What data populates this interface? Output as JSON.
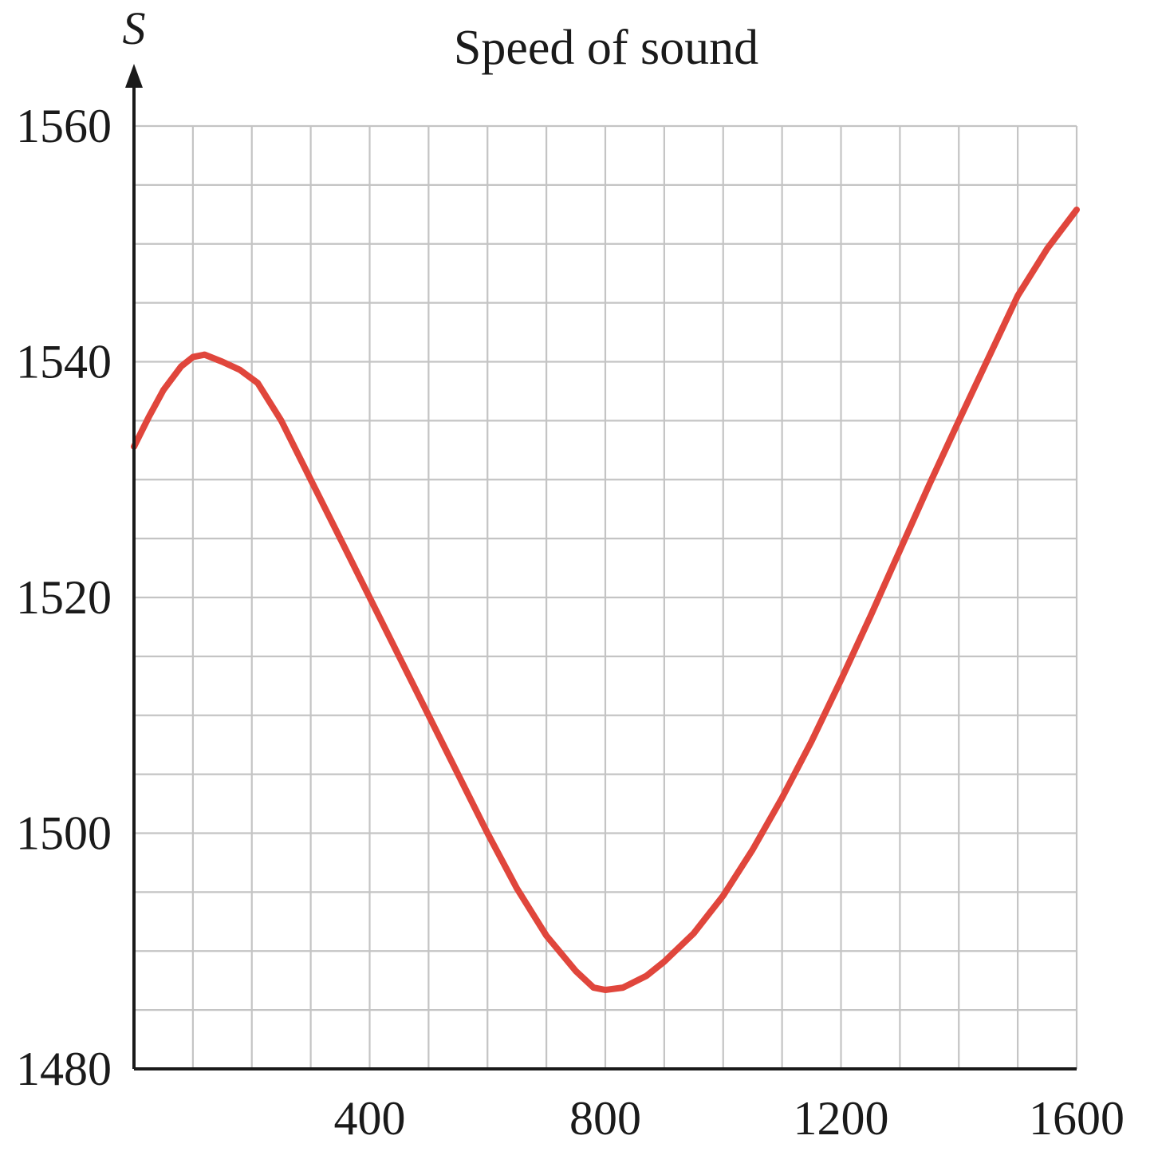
{
  "chart_data": {
    "type": "line",
    "title": "Speed of sound",
    "xlabel": "",
    "ylabel": "S",
    "xlim": [
      0,
      1600
    ],
    "ylim": [
      1480,
      1560
    ],
    "x_ticks": [
      400,
      800,
      1200,
      1600
    ],
    "y_ticks": [
      1480,
      1500,
      1520,
      1540,
      1560
    ],
    "x_grid_step": 100,
    "y_grid_step": 5,
    "grid": true,
    "series": [
      {
        "color": "#e0463c",
        "points": [
          [
            0,
            1532.8
          ],
          [
            25,
            1535.3
          ],
          [
            50,
            1537.6
          ],
          [
            80,
            1539.6
          ],
          [
            100,
            1540.4
          ],
          [
            120,
            1540.6
          ],
          [
            150,
            1540.0
          ],
          [
            180,
            1539.3
          ],
          [
            210,
            1538.2
          ],
          [
            250,
            1535.0
          ],
          [
            300,
            1530.0
          ],
          [
            350,
            1525.0
          ],
          [
            400,
            1520.0
          ],
          [
            450,
            1515.0
          ],
          [
            500,
            1510.0
          ],
          [
            550,
            1505.0
          ],
          [
            600,
            1500.0
          ],
          [
            650,
            1495.3
          ],
          [
            700,
            1491.3
          ],
          [
            750,
            1488.3
          ],
          [
            780,
            1486.9
          ],
          [
            800,
            1486.7
          ],
          [
            830,
            1486.9
          ],
          [
            870,
            1487.9
          ],
          [
            900,
            1489.1
          ],
          [
            950,
            1491.5
          ],
          [
            1000,
            1494.7
          ],
          [
            1050,
            1498.6
          ],
          [
            1100,
            1503.0
          ],
          [
            1150,
            1507.8
          ],
          [
            1200,
            1513.0
          ],
          [
            1250,
            1518.4
          ],
          [
            1300,
            1524.0
          ],
          [
            1350,
            1529.6
          ],
          [
            1400,
            1535.0
          ],
          [
            1450,
            1540.3
          ],
          [
            1500,
            1545.6
          ],
          [
            1550,
            1549.6
          ],
          [
            1600,
            1552.9
          ]
        ]
      }
    ]
  }
}
